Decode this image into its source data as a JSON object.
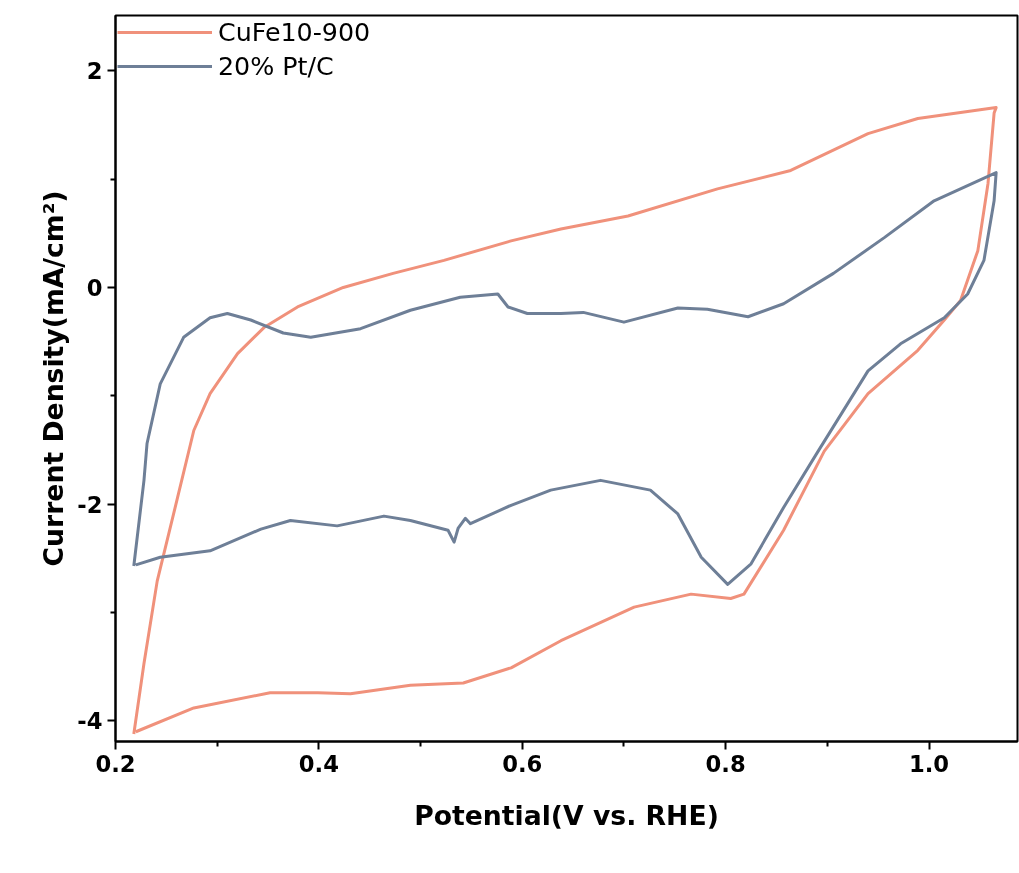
{
  "chart_data": {
    "type": "line",
    "xlabel": "Potential(V vs. RHE)",
    "ylabel": "Current Density(mA/cm²)",
    "xlim": [
      0.2,
      1.087
    ],
    "ylim": [
      -4.19,
      2.51
    ],
    "xticks": [
      {
        "value": 0.2,
        "label": "0.2"
      },
      {
        "value": 0.3,
        "label": null
      },
      {
        "value": 0.4,
        "label": "0.4"
      },
      {
        "value": 0.5,
        "label": null
      },
      {
        "value": 0.6,
        "label": "0.6"
      },
      {
        "value": 0.7,
        "label": null
      },
      {
        "value": 0.8,
        "label": "0.8"
      },
      {
        "value": 0.9,
        "label": null
      },
      {
        "value": 1.0,
        "label": "1.0"
      }
    ],
    "yticks": [
      -4,
      {
        "value": -3,
        "label": null
      },
      -2,
      {
        "value": -1,
        "label": null
      },
      0,
      {
        "value": 1,
        "label": null
      },
      2
    ],
    "grid": false,
    "legend": "top left",
    "marker": "none",
    "line_style": "solid",
    "series": [
      {
        "name": "CuFe10-900",
        "color": "#f0917b",
        "x": [
          0.218,
          0.228,
          0.241,
          0.261,
          0.277,
          0.293,
          0.32,
          0.346,
          0.379,
          0.424,
          0.473,
          0.523,
          0.589,
          0.638,
          0.704,
          0.792,
          0.864,
          0.94,
          0.989,
          1.066,
          1.064,
          1.058,
          1.048,
          1.031,
          1.015,
          0.989,
          0.94,
          0.897,
          0.857,
          0.818,
          0.805,
          0.766,
          0.71,
          0.638,
          0.589,
          0.542,
          0.49,
          0.431,
          0.399,
          0.352,
          0.277,
          0.22
        ],
        "values": [
          -4.12,
          -3.47,
          -2.71,
          -1.94,
          -1.32,
          -0.98,
          -0.61,
          -0.37,
          -0.18,
          0.0,
          0.13,
          0.25,
          0.43,
          0.54,
          0.66,
          0.91,
          1.08,
          1.42,
          1.56,
          1.66,
          1.61,
          0.96,
          0.34,
          -0.12,
          -0.3,
          -0.58,
          -0.98,
          -1.51,
          -2.24,
          -2.83,
          -2.87,
          -2.83,
          -2.95,
          -3.26,
          -3.51,
          -3.65,
          -3.67,
          -3.75,
          -3.74,
          -3.74,
          -3.88,
          -4.1
        ]
      },
      {
        "name": "20% Pt/C",
        "color": "#6e7f97",
        "x": [
          0.218,
          0.228,
          0.231,
          0.244,
          0.267,
          0.293,
          0.31,
          0.333,
          0.365,
          0.392,
          0.441,
          0.49,
          0.539,
          0.576,
          0.586,
          0.605,
          0.638,
          0.66,
          0.7,
          0.753,
          0.782,
          0.822,
          0.857,
          0.906,
          0.956,
          1.005,
          1.066,
          1.064,
          1.054,
          1.038,
          1.015,
          0.972,
          0.94,
          0.891,
          0.857,
          0.825,
          0.802,
          0.776,
          0.753,
          0.726,
          0.677,
          0.628,
          0.589,
          0.549,
          0.544,
          0.537,
          0.533,
          0.527,
          0.49,
          0.464,
          0.418,
          0.372,
          0.343,
          0.293,
          0.244,
          0.22
        ],
        "values": [
          -2.57,
          -1.78,
          -1.44,
          -0.89,
          -0.46,
          -0.28,
          -0.24,
          -0.3,
          -0.42,
          -0.46,
          -0.38,
          -0.21,
          -0.09,
          -0.06,
          -0.18,
          -0.24,
          -0.24,
          -0.23,
          -0.32,
          -0.19,
          -0.2,
          -0.27,
          -0.15,
          0.13,
          0.46,
          0.8,
          1.06,
          0.8,
          0.25,
          -0.06,
          -0.28,
          -0.52,
          -0.77,
          -1.51,
          -2.03,
          -2.55,
          -2.74,
          -2.49,
          -2.09,
          -1.87,
          -1.78,
          -1.87,
          -2.01,
          -2.18,
          -2.13,
          -2.22,
          -2.35,
          -2.24,
          -2.15,
          -2.11,
          -2.2,
          -2.15,
          -2.23,
          -2.43,
          -2.49,
          -2.56
        ]
      }
    ]
  }
}
